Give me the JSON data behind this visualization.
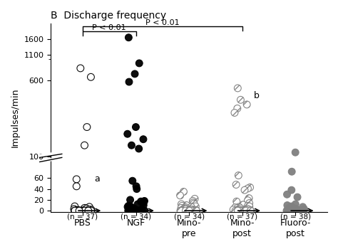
{
  "title": "B  Discharge frequency",
  "ylabel": "Impulses/min",
  "groups": [
    "PBS",
    "NGF",
    "Mino-\npre",
    "Mino-\npost",
    "Fluoro-\npost"
  ],
  "n_labels": [
    "(n = 37)",
    "(n = 34)",
    "(n = 34)",
    "(n = 37)",
    "(n = 38)"
  ],
  "pbs_data": [
    800,
    650,
    200,
    130,
    58,
    45,
    8,
    7,
    5,
    4,
    3,
    2,
    2,
    1,
    1,
    0,
    0,
    0,
    0,
    0,
    0,
    0,
    0,
    0,
    0,
    0,
    0,
    0,
    0,
    0,
    0,
    0,
    0,
    0,
    0,
    0,
    0
  ],
  "ngf_data": [
    1650,
    900,
    700,
    580,
    200,
    170,
    150,
    130,
    120,
    55,
    45,
    40,
    20,
    18,
    17,
    16,
    15,
    12,
    10,
    9,
    8,
    7,
    5,
    4,
    3,
    2,
    2,
    1,
    1,
    1,
    0,
    0,
    0,
    0
  ],
  "minopre_data": [
    35,
    28,
    22,
    18,
    15,
    13,
    12,
    10,
    9,
    8,
    7,
    6,
    5,
    4,
    3,
    2,
    2,
    1,
    1,
    1,
    0,
    0,
    0,
    0,
    0,
    0,
    0,
    0,
    0,
    0,
    0,
    0,
    0,
    0
  ],
  "minopost_data": [
    500,
    380,
    340,
    310,
    280,
    65,
    48,
    43,
    41,
    38,
    23,
    19,
    17,
    14,
    11,
    9,
    8,
    7,
    6,
    5,
    4,
    3,
    2,
    2,
    1,
    1,
    1,
    0,
    0,
    0,
    0,
    0,
    0,
    0,
    0,
    0,
    0
  ],
  "fluoropost_data": [
    110,
    72,
    38,
    30,
    25,
    12,
    10,
    8,
    7,
    6,
    5,
    4,
    3,
    2,
    1,
    1,
    0,
    0,
    0,
    0,
    0,
    0,
    0,
    0,
    0,
    0,
    0,
    0,
    0,
    0,
    0,
    0,
    0,
    0,
    0,
    0,
    0,
    0
  ],
  "colors": [
    "white",
    "black",
    "white",
    "white",
    "gray"
  ],
  "hatch_patterns": [
    "",
    "",
    "///",
    "///",
    ""
  ],
  "edgecolors": [
    "black",
    "black",
    "gray",
    "gray",
    "gray"
  ],
  "yticks": [
    0,
    20,
    40,
    60,
    100,
    600,
    1100,
    1600
  ],
  "background": "white"
}
